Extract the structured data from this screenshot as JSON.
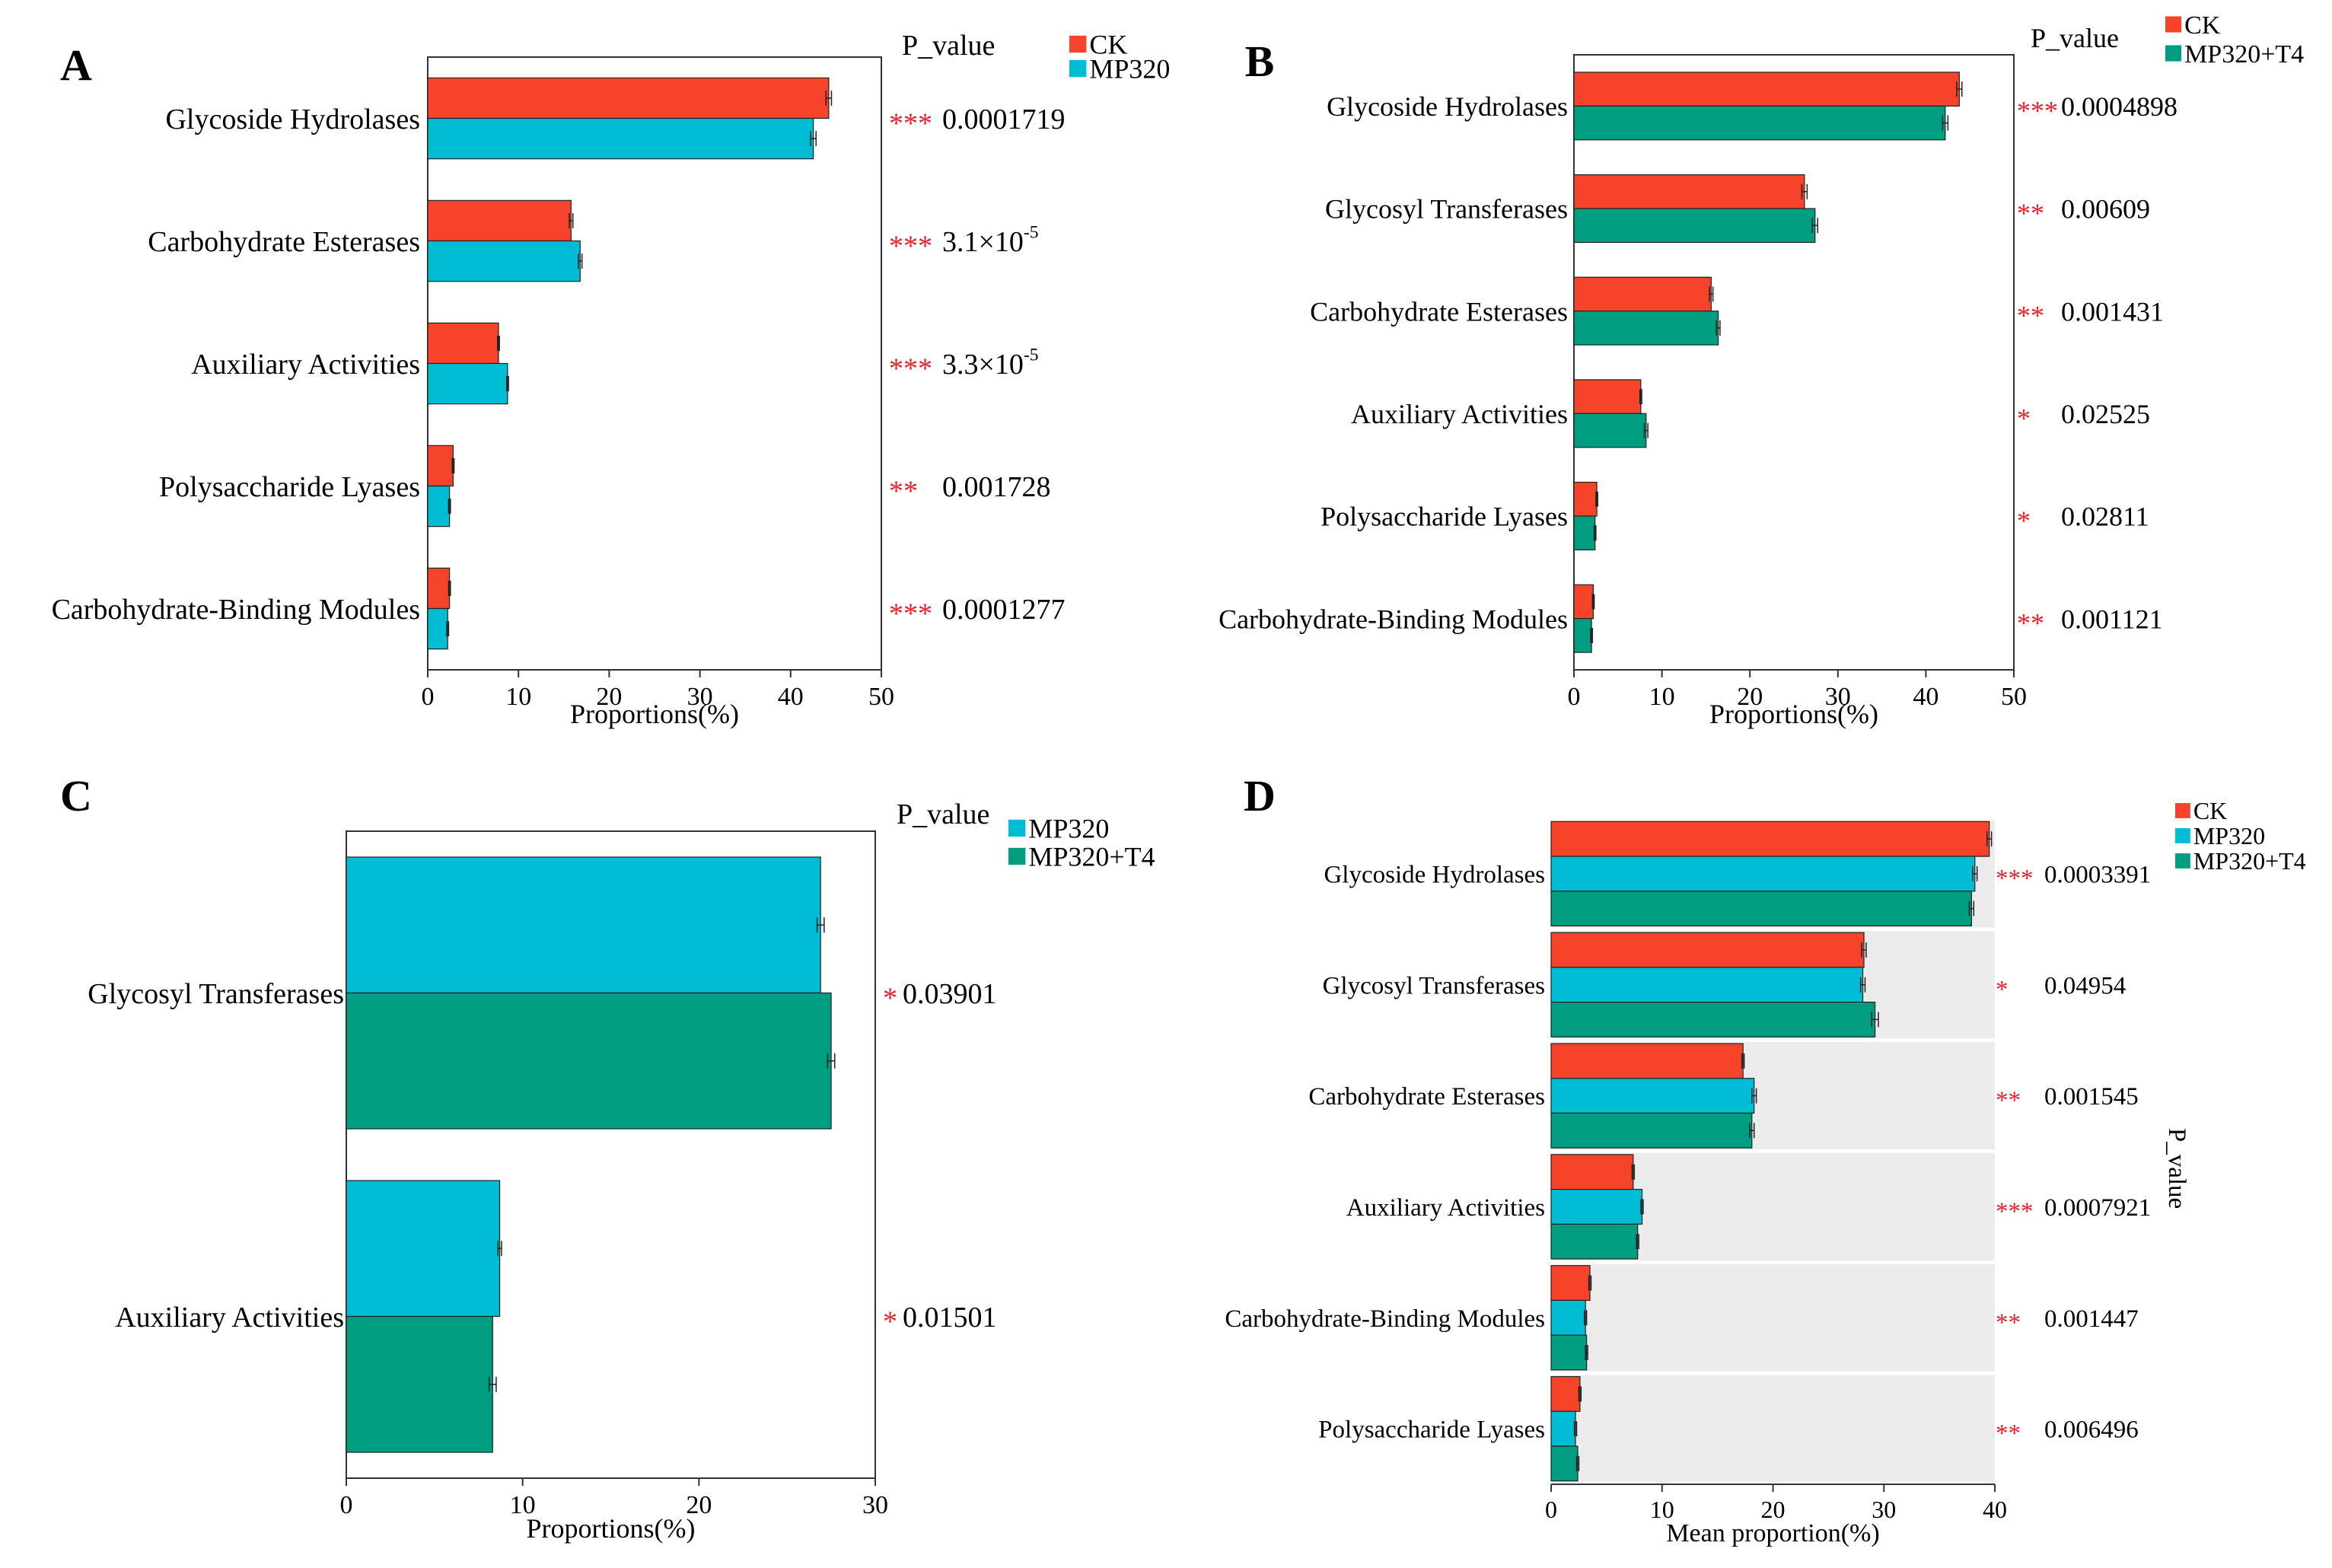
{
  "colors": {
    "ck": "#f5442a",
    "mp320": "#00bcd4",
    "mp320t4": "#009e80",
    "star": "#e8202a",
    "panel_bg": "#ececec"
  },
  "chart_data": [
    {
      "panel": "A",
      "type": "bar",
      "orientation": "horizontal",
      "title": "",
      "xlabel": "Proportions(%)",
      "ylabel": "",
      "xlim": [
        0,
        50
      ],
      "ticks": [
        "0",
        "10",
        "20",
        "30",
        "40",
        "50"
      ],
      "pvalue_header": "P_value",
      "categories": [
        "Glycoside Hydrolases",
        "Carbohydrate Esterases",
        "Auxiliary Activities",
        "Polysaccharide Lyases",
        "Carbohydrate-Binding Modules"
      ],
      "series": [
        {
          "name": "CK",
          "values": [
            44.2,
            15.8,
            7.8,
            2.8,
            2.4
          ],
          "errors": [
            0.3,
            0.2,
            0.1,
            0.1,
            0.1
          ]
        },
        {
          "name": "MP320",
          "values": [
            42.5,
            16.8,
            8.8,
            2.4,
            2.2
          ],
          "errors": [
            0.3,
            0.2,
            0.1,
            0.1,
            0.1
          ]
        }
      ],
      "significance": [
        "***",
        "***",
        "***",
        "**",
        "***"
      ],
      "pvalues": [
        {
          "text": "0.0001719"
        },
        {
          "text": "3.1×10",
          "exp": "-5"
        },
        {
          "text": "3.3×10",
          "exp": "-5"
        },
        {
          "text": "0.001728"
        },
        {
          "text": "0.0001277"
        }
      ]
    },
    {
      "panel": "B",
      "type": "bar",
      "orientation": "horizontal",
      "title": "",
      "xlabel": "Proportions(%)",
      "ylabel": "",
      "xlim": [
        0,
        50
      ],
      "ticks": [
        "0",
        "10",
        "20",
        "30",
        "40",
        "50"
      ],
      "pvalue_header": "P_value",
      "categories": [
        "Glycoside Hydrolases",
        "Glycosyl Transferases",
        "Carbohydrate Esterases",
        "Auxiliary Activities",
        "Polysaccharide Lyases",
        "Carbohydrate-Binding Modules"
      ],
      "series": [
        {
          "name": "CK",
          "values": [
            43.8,
            26.2,
            15.6,
            7.6,
            2.6,
            2.2
          ],
          "errors": [
            0.3,
            0.3,
            0.2,
            0.1,
            0.1,
            0.1
          ]
        },
        {
          "name": "MP320+T4",
          "values": [
            42.2,
            27.4,
            16.4,
            8.2,
            2.4,
            2.0
          ],
          "errors": [
            0.3,
            0.3,
            0.2,
            0.2,
            0.1,
            0.1
          ]
        }
      ],
      "significance": [
        "***",
        "**",
        "**",
        "*",
        "*",
        "**"
      ],
      "pvalues": [
        {
          "text": "0.0004898"
        },
        {
          "text": "0.00609"
        },
        {
          "text": "0.001431"
        },
        {
          "text": "0.02525"
        },
        {
          "text": "0.02811"
        },
        {
          "text": "0.001121"
        }
      ]
    },
    {
      "panel": "C",
      "type": "bar",
      "orientation": "horizontal",
      "title": "",
      "xlabel": "Proportions(%)",
      "ylabel": "",
      "xlim": [
        0,
        30
      ],
      "ticks": [
        "0",
        "10",
        "20",
        "30"
      ],
      "pvalue_header": "P_value",
      "categories": [
        "Glycosyl Transferases",
        "Auxiliary Activities"
      ],
      "series": [
        {
          "name": "MP320",
          "values": [
            26.9,
            8.7
          ],
          "errors": [
            0.2,
            0.1
          ]
        },
        {
          "name": "MP320+T4",
          "values": [
            27.5,
            8.3
          ],
          "errors": [
            0.2,
            0.2
          ]
        }
      ],
      "significance": [
        "*",
        "*"
      ],
      "pvalues": [
        {
          "text": "0.03901"
        },
        {
          "text": "0.01501"
        }
      ]
    },
    {
      "panel": "D",
      "type": "bar",
      "orientation": "horizontal",
      "title": "",
      "xlabel": "Mean proportion(%)",
      "ylabel": "",
      "xlim": [
        0,
        40
      ],
      "ticks": [
        "0",
        "10",
        "20",
        "30",
        "40"
      ],
      "pvalue_header": "P_value",
      "categories": [
        "Glycoside Hydrolases",
        "Glycosyl Transferases",
        "Carbohydrate Esterases",
        "Auxiliary Activities",
        "Carbohydrate-Binding Modules",
        "Polysaccharide Lyases"
      ],
      "series": [
        {
          "name": "CK",
          "values": [
            39.5,
            28.2,
            17.3,
            7.4,
            3.5,
            2.6
          ],
          "errors": [
            0.2,
            0.2,
            0.1,
            0.1,
            0.1,
            0.1
          ]
        },
        {
          "name": "MP320",
          "values": [
            38.2,
            28.1,
            18.3,
            8.2,
            3.1,
            2.2
          ],
          "errors": [
            0.2,
            0.2,
            0.2,
            0.1,
            0.1,
            0.1
          ]
        },
        {
          "name": "MP320+T4",
          "values": [
            37.9,
            29.2,
            18.1,
            7.8,
            3.2,
            2.4
          ],
          "errors": [
            0.2,
            0.3,
            0.2,
            0.1,
            0.1,
            0.1
          ]
        }
      ],
      "significance": [
        "***",
        "*",
        "**",
        "***",
        "**",
        "**"
      ],
      "pvalues": [
        {
          "text": "0.0003391"
        },
        {
          "text": "0.04954"
        },
        {
          "text": "0.001545"
        },
        {
          "text": "0.0007921"
        },
        {
          "text": "0.001447"
        },
        {
          "text": "0.006496"
        }
      ]
    }
  ]
}
